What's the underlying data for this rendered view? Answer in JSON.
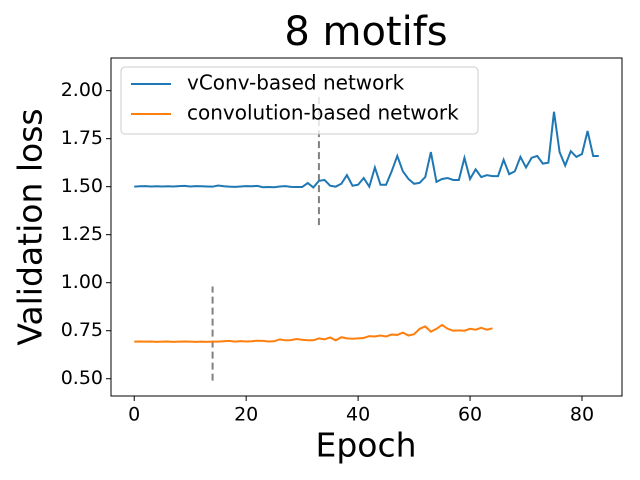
{
  "chart_data": {
    "type": "line",
    "title": "8 motifs",
    "x_label": "Epoch",
    "y_label": "Validation loss",
    "xlim": [
      -4.15,
      87.15
    ],
    "ylim": [
      0.41,
      2.17
    ],
    "xticks": [
      0,
      20,
      40,
      60,
      80
    ],
    "yticks": [
      {
        "value": 0.5,
        "label": "0.50"
      },
      {
        "value": 0.75,
        "label": "0.75"
      },
      {
        "value": 1.0,
        "label": "1.00"
      },
      {
        "value": 1.25,
        "label": "1.25"
      },
      {
        "value": 1.5,
        "label": "1.50"
      },
      {
        "value": 1.75,
        "label": "1.75"
      },
      {
        "value": 2.0,
        "label": "2.00"
      }
    ],
    "legend": "upper left",
    "series": [
      {
        "name": "vConv-based network",
        "color": "#1f77b4",
        "x": [
          0,
          1,
          2,
          3,
          4,
          5,
          6,
          7,
          8,
          9,
          10,
          11,
          12,
          13,
          14,
          15,
          16,
          17,
          18,
          19,
          20,
          21,
          22,
          23,
          24,
          25,
          26,
          27,
          28,
          29,
          30,
          31,
          32,
          33,
          34,
          35,
          36,
          37,
          38,
          39,
          40,
          41,
          42,
          43,
          44,
          45,
          46,
          47,
          48,
          49,
          50,
          51,
          52,
          53,
          54,
          55,
          56,
          57,
          58,
          59,
          60,
          61,
          62,
          63,
          64,
          65,
          66,
          67,
          68,
          69,
          70,
          71,
          72,
          73,
          74,
          75,
          76,
          77,
          78,
          79,
          80,
          81,
          82,
          83
        ],
        "values": [
          1.5,
          1.502,
          1.503,
          1.501,
          1.502,
          1.501,
          1.502,
          1.501,
          1.503,
          1.504,
          1.501,
          1.503,
          1.502,
          1.501,
          1.5,
          1.506,
          1.502,
          1.5,
          1.499,
          1.501,
          1.503,
          1.502,
          1.504,
          1.497,
          1.498,
          1.497,
          1.501,
          1.503,
          1.499,
          1.498,
          1.498,
          1.519,
          1.496,
          1.53,
          1.535,
          1.505,
          1.5,
          1.515,
          1.56,
          1.505,
          1.51,
          1.545,
          1.5,
          1.6,
          1.51,
          1.51,
          1.58,
          1.66,
          1.58,
          1.54,
          1.515,
          1.52,
          1.55,
          1.68,
          1.525,
          1.54,
          1.545,
          1.535,
          1.535,
          1.65,
          1.54,
          1.59,
          1.55,
          1.56,
          1.555,
          1.555,
          1.64,
          1.565,
          1.58,
          1.655,
          1.6,
          1.65,
          1.66,
          1.62,
          1.625,
          1.89,
          1.68,
          1.61,
          1.685,
          1.655,
          1.67,
          1.79,
          1.66,
          1.66
        ]
      },
      {
        "name": "convolution-based network",
        "color": "#ff7f0e",
        "x": [
          0,
          1,
          2,
          3,
          4,
          5,
          6,
          7,
          8,
          9,
          10,
          11,
          12,
          13,
          14,
          15,
          16,
          17,
          18,
          19,
          20,
          21,
          22,
          23,
          24,
          25,
          26,
          27,
          28,
          29,
          30,
          31,
          32,
          33,
          34,
          35,
          36,
          37,
          38,
          39,
          40,
          41,
          42,
          43,
          44,
          45,
          46,
          47,
          48,
          49,
          50,
          51,
          52,
          53,
          54,
          55,
          56,
          57,
          58,
          59,
          60,
          61,
          62,
          63,
          64
        ],
        "values": [
          0.693,
          0.694,
          0.693,
          0.694,
          0.692,
          0.693,
          0.694,
          0.692,
          0.693,
          0.694,
          0.693,
          0.692,
          0.693,
          0.692,
          0.693,
          0.693,
          0.695,
          0.697,
          0.693,
          0.696,
          0.694,
          0.695,
          0.698,
          0.697,
          0.694,
          0.695,
          0.705,
          0.7,
          0.701,
          0.707,
          0.703,
          0.7,
          0.7,
          0.71,
          0.705,
          0.715,
          0.7,
          0.716,
          0.71,
          0.708,
          0.71,
          0.712,
          0.722,
          0.72,
          0.725,
          0.72,
          0.73,
          0.728,
          0.74,
          0.725,
          0.732,
          0.76,
          0.772,
          0.745,
          0.76,
          0.78,
          0.76,
          0.75,
          0.752,
          0.75,
          0.76,
          0.755,
          0.765,
          0.755,
          0.762
        ]
      }
    ],
    "vlines": [
      {
        "x": 33,
        "ymin": 1.3,
        "ymax": 1.98,
        "color": "#808080"
      },
      {
        "x": 14,
        "ymin": 0.49,
        "ymax": 0.98,
        "color": "#808080"
      }
    ]
  }
}
